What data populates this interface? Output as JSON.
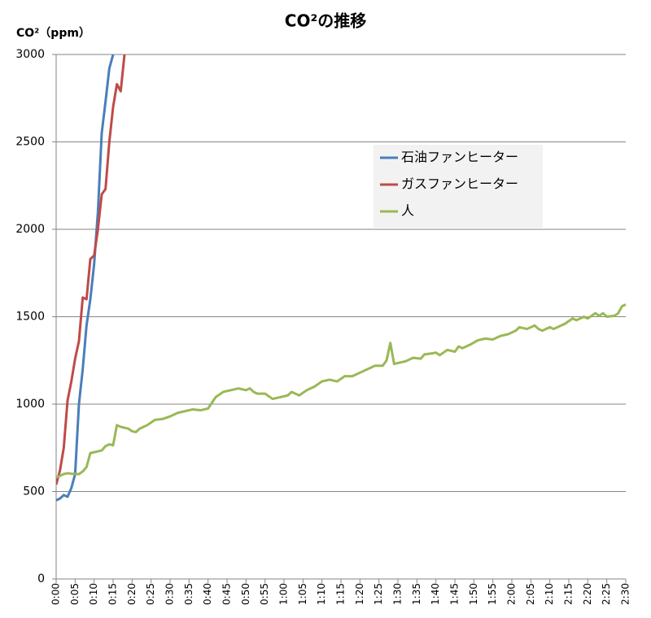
{
  "chart_data": {
    "type": "line",
    "title": "CO²の推移",
    "y_label": "CO²（ppm）",
    "xlim": [
      0,
      150
    ],
    "ylim": [
      0,
      3000
    ],
    "yticks": [
      0,
      500,
      1000,
      1500,
      2000,
      2500,
      3000
    ],
    "grid": true,
    "legend": "right",
    "xticks": [
      {
        "value": 0,
        "label": "0:00"
      },
      {
        "value": 5,
        "label": "0:05"
      },
      {
        "value": 10,
        "label": "0:10"
      },
      {
        "value": 15,
        "label": "0:15"
      },
      {
        "value": 20,
        "label": "0:20"
      },
      {
        "value": 25,
        "label": "0:25"
      },
      {
        "value": 30,
        "label": "0:30"
      },
      {
        "value": 35,
        "label": "0:35"
      },
      {
        "value": 40,
        "label": "0:40"
      },
      {
        "value": 45,
        "label": "0:45"
      },
      {
        "value": 50,
        "label": "0:50"
      },
      {
        "value": 55,
        "label": "0:55"
      },
      {
        "value": 60,
        "label": "1:00"
      },
      {
        "value": 65,
        "label": "1:05"
      },
      {
        "value": 70,
        "label": "1:10"
      },
      {
        "value": 75,
        "label": "1:15"
      },
      {
        "value": 80,
        "label": "1:20"
      },
      {
        "value": 85,
        "label": "1:25"
      },
      {
        "value": 90,
        "label": "1:30"
      },
      {
        "value": 95,
        "label": "1:35"
      },
      {
        "value": 100,
        "label": "1:40"
      },
      {
        "value": 105,
        "label": "1:45"
      },
      {
        "value": 110,
        "label": "1:50"
      },
      {
        "value": 115,
        "label": "1:55"
      },
      {
        "value": 120,
        "label": "2:00"
      },
      {
        "value": 125,
        "label": "2:05"
      },
      {
        "value": 130,
        "label": "2:10"
      },
      {
        "value": 135,
        "label": "2:15"
      },
      {
        "value": 140,
        "label": "2:20"
      },
      {
        "value": 145,
        "label": "2:25"
      },
      {
        "value": 150,
        "label": "2:30"
      }
    ],
    "series": [
      {
        "name": "石油ファンヒーター",
        "color": "#4a7ebb",
        "x": [
          0,
          1,
          2,
          3,
          4,
          5,
          6,
          7,
          8,
          9,
          10,
          11,
          12,
          13,
          14,
          15
        ],
        "values": [
          450,
          460,
          480,
          470,
          520,
          600,
          1000,
          1200,
          1450,
          1600,
          1800,
          2100,
          2550,
          2730,
          2920,
          3000
        ]
      },
      {
        "name": "ガスファンヒーター",
        "color": "#be4b48",
        "x": [
          0,
          1,
          2,
          3,
          4,
          5,
          6,
          7,
          8,
          9,
          10,
          11,
          12,
          13,
          14,
          15,
          16,
          17,
          18
        ],
        "values": [
          540,
          620,
          750,
          1020,
          1130,
          1260,
          1360,
          1610,
          1600,
          1830,
          1850,
          2000,
          2200,
          2230,
          2500,
          2700,
          2830,
          2790,
          3000
        ]
      },
      {
        "name": "人",
        "color": "#98b954",
        "x": [
          0,
          1,
          2,
          3,
          4,
          5,
          6,
          7,
          8,
          9,
          10,
          11,
          12,
          13,
          14,
          15,
          16,
          17,
          18,
          19,
          20,
          21,
          22,
          24,
          26,
          28,
          30,
          32,
          34,
          36,
          38,
          40,
          42,
          44,
          46,
          48,
          50,
          51,
          52,
          53,
          55,
          57,
          59,
          61,
          62,
          63,
          64,
          66,
          68,
          70,
          72,
          74,
          76,
          78,
          80,
          82,
          84,
          86,
          87,
          88,
          89,
          90,
          92,
          94,
          96,
          97,
          99,
          100,
          101,
          103,
          105,
          106,
          107,
          109,
          111,
          113,
          115,
          117,
          119,
          121,
          122,
          124,
          126,
          127,
          128,
          130,
          131,
          133,
          134,
          136,
          137,
          139,
          140,
          142,
          143,
          144,
          145,
          147,
          148,
          149,
          150
        ],
        "values": [
          580,
          590,
          600,
          605,
          602,
          600,
          600,
          615,
          640,
          720,
          725,
          730,
          735,
          760,
          770,
          765,
          880,
          870,
          865,
          860,
          845,
          840,
          860,
          880,
          910,
          915,
          930,
          950,
          960,
          970,
          965,
          975,
          1040,
          1070,
          1080,
          1090,
          1080,
          1090,
          1070,
          1060,
          1060,
          1030,
          1040,
          1050,
          1070,
          1060,
          1050,
          1080,
          1100,
          1130,
          1140,
          1130,
          1160,
          1160,
          1180,
          1200,
          1220,
          1220,
          1250,
          1350,
          1230,
          1235,
          1245,
          1265,
          1260,
          1285,
          1290,
          1295,
          1280,
          1310,
          1300,
          1330,
          1320,
          1340,
          1365,
          1375,
          1370,
          1390,
          1400,
          1420,
          1440,
          1430,
          1450,
          1430,
          1420,
          1440,
          1430,
          1450,
          1460,
          1490,
          1480,
          1500,
          1490,
          1520,
          1505,
          1520,
          1500,
          1505,
          1520,
          1560,
          1570
        ]
      }
    ]
  }
}
